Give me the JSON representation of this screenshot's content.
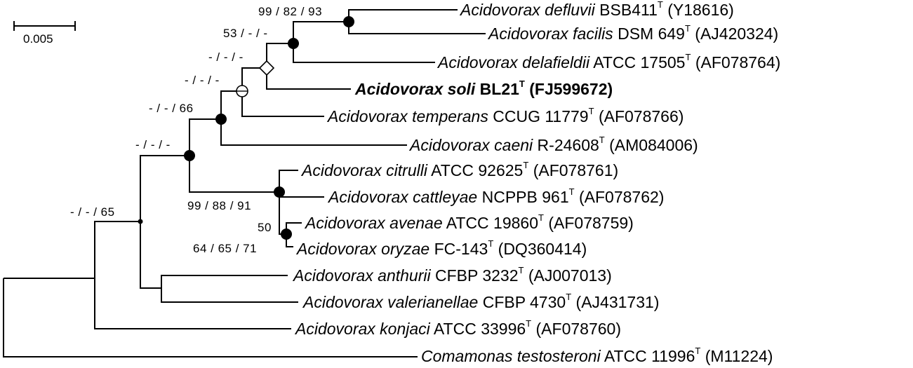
{
  "scale_bar": {
    "label": "0.005"
  },
  "taxa": [
    {
      "genus": "Acidovorax",
      "species": "defluvii",
      "strain": "BSB411",
      "type": "T",
      "accession": "(Y18616)"
    },
    {
      "genus": "Acidovorax",
      "species": "facilis",
      "strain": "DSM 649",
      "type": "T",
      "accession": "(AJ420324)"
    },
    {
      "genus": "Acidovorax",
      "species": "delafieldii",
      "strain": "ATCC 17505",
      "type": "T",
      "accession": "(AF078764)"
    },
    {
      "genus": "Acidovorax",
      "species": "soli",
      "strain": "BL21",
      "type": "T",
      "accession": "(FJ599672)"
    },
    {
      "genus": "Acidovorax",
      "species": "temperans",
      "strain": "CCUG 11779",
      "type": "T",
      "accession": "(AF078766)"
    },
    {
      "genus": "Acidovorax",
      "species": "caeni",
      "strain": "R-24608",
      "type": "T",
      "accession": "(AM084006)"
    },
    {
      "genus": "Acidovorax",
      "species": "citrulli",
      "strain": "ATCC 92625",
      "type": "T",
      "accession": "(AF078761)"
    },
    {
      "genus": "Acidovorax",
      "species": "cattleyae",
      "strain": "NCPPB 961",
      "type": "T",
      "accession": "(AF078762)"
    },
    {
      "genus": "Acidovorax",
      "species": "avenae",
      "strain": "ATCC 19860",
      "type": "T",
      "accession": "(AF078759)"
    },
    {
      "genus": "Acidovorax",
      "species": "oryzae",
      "strain": "FC-143",
      "type": "T",
      "accession": "(DQ360414)"
    },
    {
      "genus": "Acidovorax",
      "species": "anthurii",
      "strain": "CFBP 3232",
      "type": "T",
      "accession": "(AJ007013)"
    },
    {
      "genus": "Acidovorax",
      "species": "valerianellae",
      "strain": "CFBP 4730",
      "type": "T",
      "accession": "(AJ431731)"
    },
    {
      "genus": "Acidovorax",
      "species": "konjaci",
      "strain": "ATCC 33996",
      "type": "T",
      "accession": "(AF078760)"
    },
    {
      "genus": "Comamonas",
      "species": "testosteroni",
      "strain": "ATCC 11996",
      "type": "T",
      "accession": "(M11224)"
    }
  ],
  "supports": [
    {
      "text": "99 / 82 / 93",
      "node_marker": "filled-circle"
    },
    {
      "text": "53 / - / -",
      "node_marker": "filled-circle"
    },
    {
      "text": "- / - / -",
      "node_marker": "open-diamond"
    },
    {
      "text": "- / - / -",
      "node_marker": "open-circle-cross"
    },
    {
      "text": "- / - / 66",
      "node_marker": "filled-circle"
    },
    {
      "text": "- / - / -",
      "node_marker": "filled-circle"
    },
    {
      "text": "99 / 88 / 91",
      "node_marker": "filled-circle"
    },
    {
      "text": "50",
      "node_marker": "none"
    },
    {
      "text": "64 / 65 / 71",
      "node_marker": "filled-circle"
    },
    {
      "text": "- / - / 65",
      "node_marker": "small-dot"
    }
  ]
}
